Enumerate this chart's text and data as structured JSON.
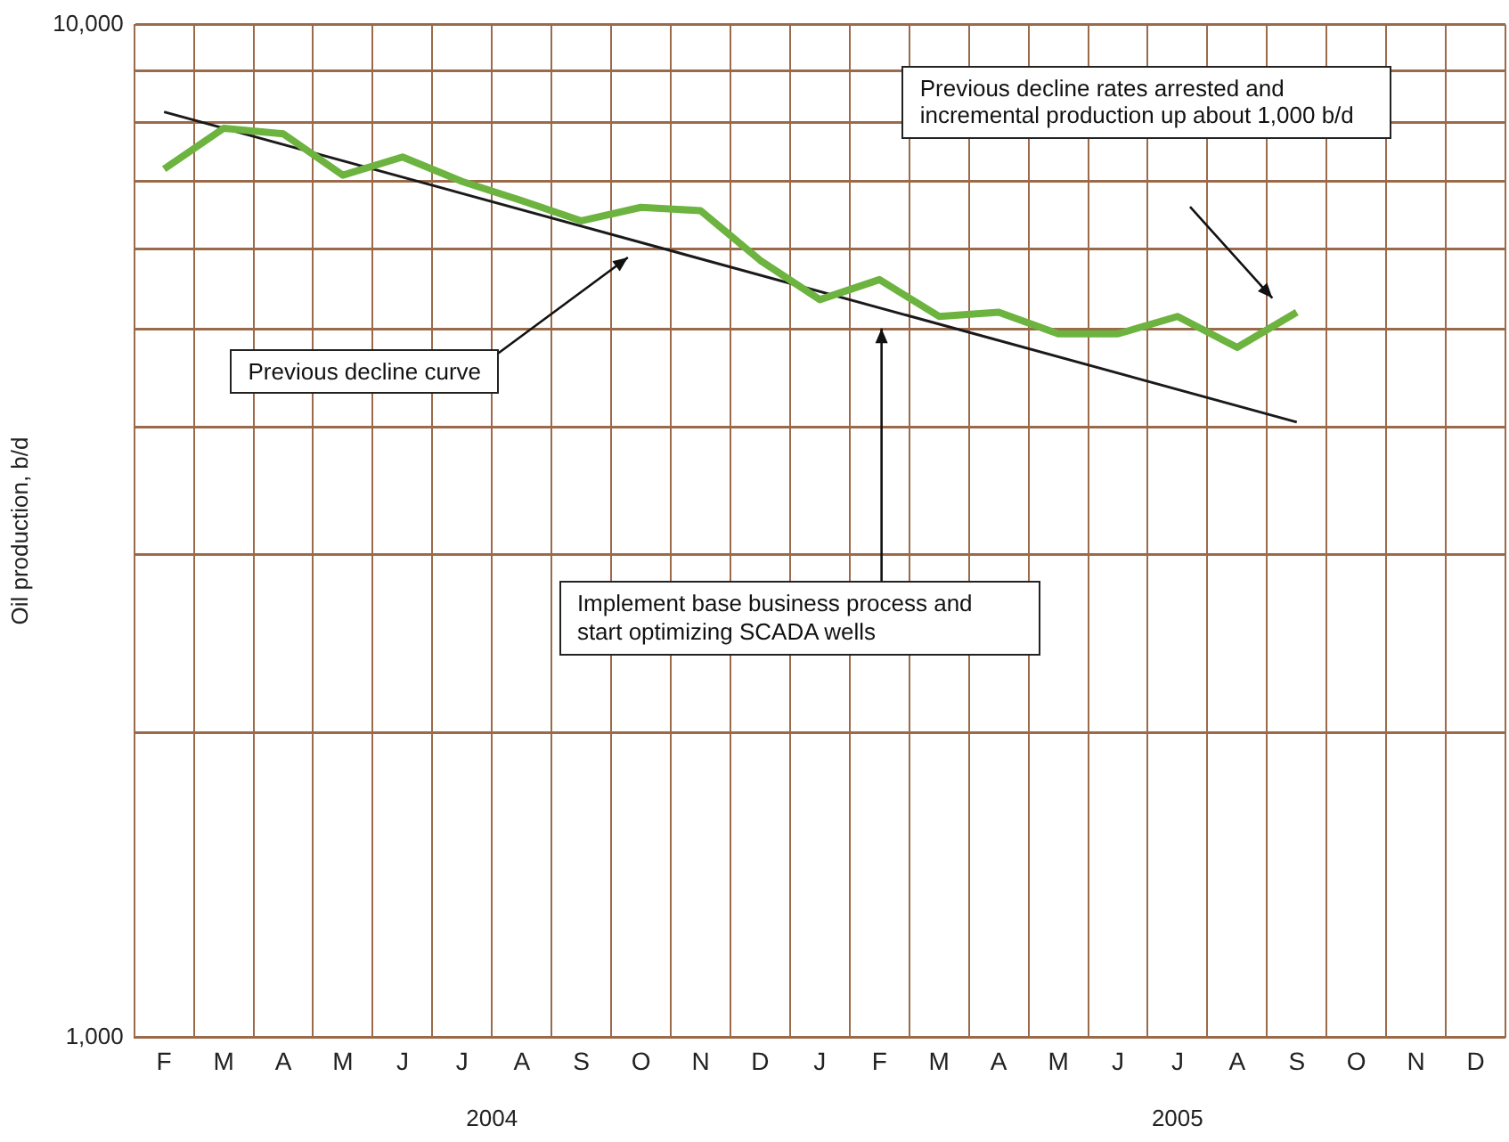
{
  "chart_data": {
    "type": "line",
    "ylabel": "Oil production, b/d",
    "categories": [
      "F",
      "M",
      "A",
      "M",
      "J",
      "J",
      "A",
      "S",
      "O",
      "N",
      "D",
      "J",
      "F",
      "M",
      "A",
      "M",
      "J",
      "J",
      "A",
      "S",
      "O",
      "N",
      "D"
    ],
    "series": [
      {
        "color": "#6cb33f",
        "values": [
          7200,
          7900,
          7800,
          7100,
          7400,
          7000,
          6700,
          6400,
          6600,
          6550,
          5850,
          5350,
          5600,
          5150,
          5200,
          4950,
          4950,
          5150,
          4800,
          5200,
          null,
          null,
          null
        ]
      },
      {
        "color": "#1a1a1a",
        "values": [
          8200,
          null,
          null,
          null,
          null,
          null,
          null,
          null,
          null,
          null,
          null,
          null,
          null,
          null,
          null,
          null,
          null,
          null,
          null,
          4050,
          null,
          null,
          null
        ]
      }
    ],
    "log": true,
    "ylim": [
      1000,
      10000
    ],
    "yticks": [
      {
        "value": 1000,
        "label": "1,000"
      },
      {
        "value": 2000,
        "label": null
      },
      {
        "value": 3000,
        "label": null
      },
      {
        "value": 4000,
        "label": null
      },
      {
        "value": 5000,
        "label": null
      },
      {
        "value": 6000,
        "label": null
      },
      {
        "value": 7000,
        "label": null
      },
      {
        "value": 8000,
        "label": null
      },
      {
        "value": 9000,
        "label": null
      },
      {
        "value": 10000,
        "label": "10,000"
      }
    ],
    "grid": true,
    "legend": false,
    "marker": "none",
    "line_style": "solid",
    "annotations": [
      "2004",
      "2005",
      "Previous decline curve",
      "Previous decline rates arrested and incremental production up about 1,000 b/d",
      "Implement base business process and start optimizing SCADA wells"
    ]
  }
}
